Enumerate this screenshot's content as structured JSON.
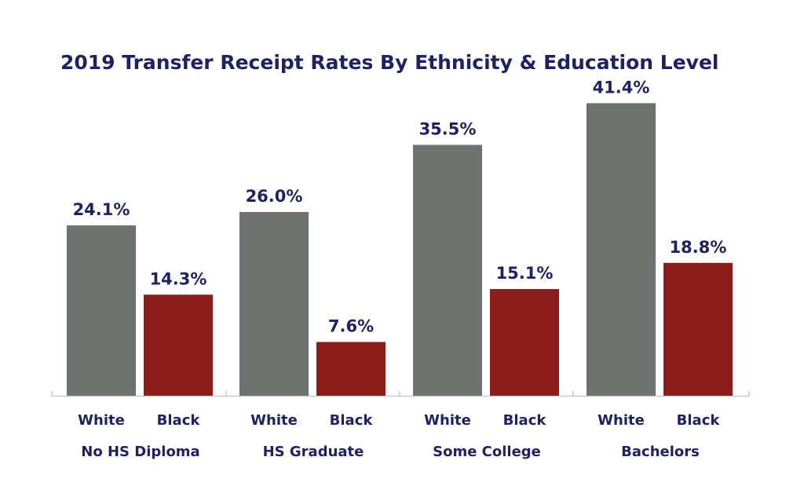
{
  "chart_data": {
    "type": "bar",
    "title": "2019 Transfer Receipt Rates By Ethnicity & Education Level",
    "categories": [
      "No HS Diploma",
      "HS Graduate",
      "Some College",
      "Bachelors"
    ],
    "series": [
      {
        "name": "White",
        "values": [
          24.1,
          26.0,
          35.5,
          41.4
        ],
        "labels": [
          "24.1%",
          "26.0%",
          "35.5%",
          "41.4%"
        ],
        "color": "#6e7370"
      },
      {
        "name": "Black",
        "values": [
          14.3,
          7.6,
          15.1,
          18.8
        ],
        "labels": [
          "14.3%",
          "7.6%",
          "15.1%",
          "18.8%"
        ],
        "color": "#8b1e1a"
      }
    ],
    "ylim": [
      0,
      45
    ],
    "grid": false,
    "legend": "none",
    "text_color": "#1f2260",
    "axis_color": "#c8c8c8"
  }
}
